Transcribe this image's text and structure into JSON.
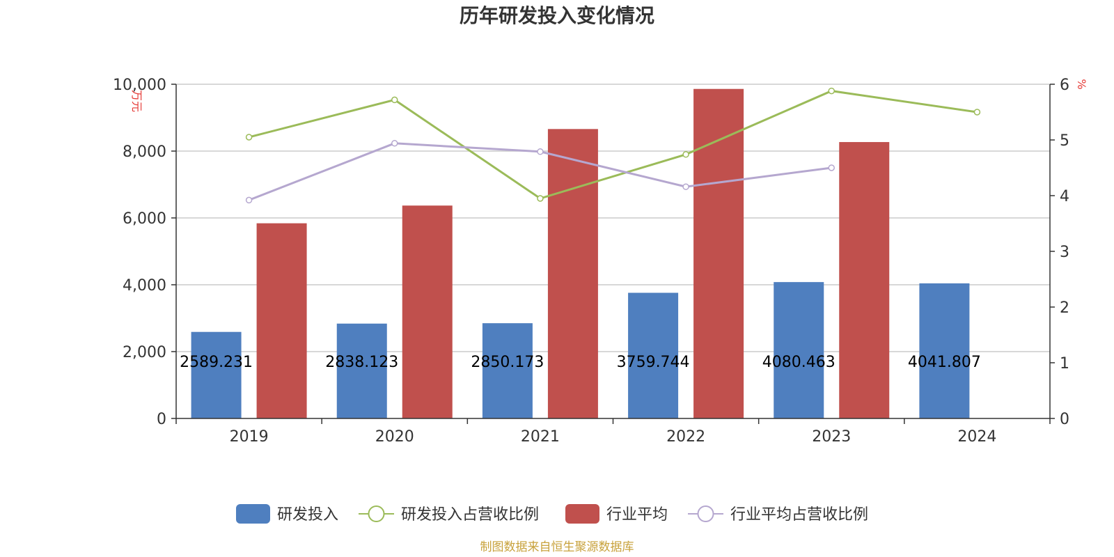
{
  "chart_data": {
    "type": "bar",
    "title": "历年研发投入变化情况",
    "categories": [
      "2019",
      "2020",
      "2021",
      "2022",
      "2023",
      "2024"
    ],
    "y_left": {
      "unit": "万元",
      "range": [
        0,
        10000
      ],
      "ticks": [
        "0",
        "2,000",
        "4,000",
        "6,000",
        "8,000",
        "10,000"
      ],
      "tick_values": [
        0,
        2000,
        4000,
        6000,
        8000,
        10000
      ]
    },
    "y_right": {
      "unit": "%",
      "range": [
        0,
        6
      ],
      "ticks": [
        "0",
        "1",
        "2",
        "3",
        "4",
        "5",
        "6"
      ],
      "tick_values": [
        0,
        1,
        2,
        3,
        4,
        5,
        6
      ]
    },
    "grid": true,
    "legend_position": "bottom",
    "series": [
      {
        "name": "研发投入",
        "kind": "bar",
        "axis": "left",
        "color": "#4f7fbf",
        "values": [
          2589.231,
          2838.123,
          2850.173,
          3759.744,
          4080.463,
          4041.807
        ],
        "labels": [
          "2589.231",
          "2838.123",
          "2850.173",
          "3759.744",
          "4080.463",
          "4041.807"
        ]
      },
      {
        "name": "研发投入占营收比例",
        "kind": "line",
        "axis": "right",
        "color": "#9bbb59",
        "values": [
          5.05,
          5.72,
          3.95,
          4.74,
          5.88,
          5.5
        ]
      },
      {
        "name": "行业平均",
        "kind": "bar",
        "axis": "left",
        "color": "#c0504d",
        "values": [
          5840,
          6370,
          8660,
          9860,
          8270,
          null
        ]
      },
      {
        "name": "行业平均占营收比例",
        "kind": "line",
        "axis": "right",
        "color": "#b5a7cf",
        "values": [
          3.92,
          4.94,
          4.79,
          4.16,
          4.5,
          null
        ]
      }
    ],
    "source": "制图数据来自恒生聚源数据库"
  }
}
